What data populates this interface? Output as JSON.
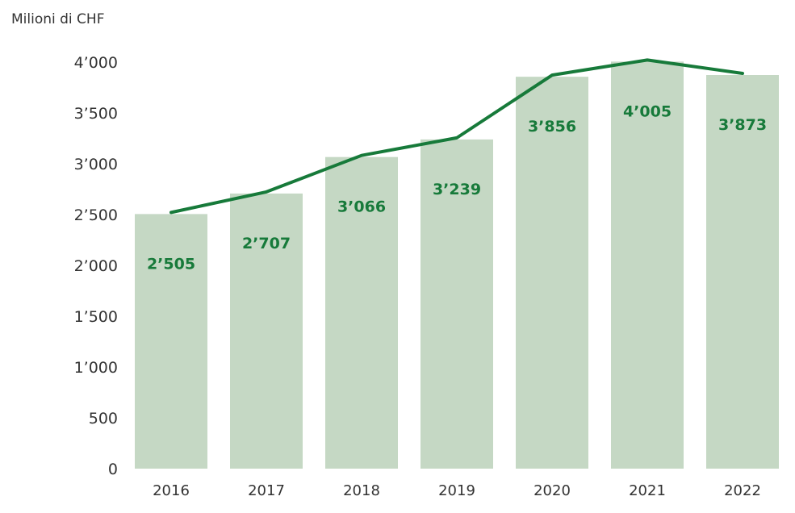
{
  "chart_data": {
    "type": "bar",
    "unit_label": "Milioni di CHF",
    "categories": [
      "2016",
      "2017",
      "2018",
      "2019",
      "2020",
      "2021",
      "2022"
    ],
    "values": [
      2505,
      2707,
      3066,
      3239,
      3856,
      4005,
      3873
    ],
    "value_labels": [
      "2’505",
      "2’707",
      "3’066",
      "3’239",
      "3’856",
      "4’005",
      "3’873"
    ],
    "ylim": [
      0,
      4000
    ],
    "yticks": [
      0,
      500,
      1000,
      1500,
      2000,
      2500,
      3000,
      3500,
      4000
    ],
    "ytick_labels": [
      "0",
      "500",
      "1’000",
      "1’500",
      "2’000",
      "2’500",
      "3’000",
      "3’500",
      "4’000"
    ],
    "overlay_line": true,
    "grid": false,
    "colors": {
      "bar": "#c5d8c4",
      "line": "#177a3a",
      "label": "#177a3a"
    }
  }
}
